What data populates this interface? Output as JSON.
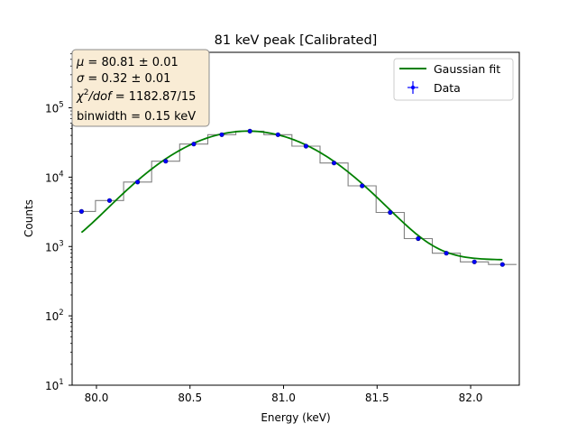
{
  "chart_data": {
    "type": "line",
    "title": "81 keV peak [Calibrated]",
    "xlabel": "Energy (keV)",
    "ylabel": "Counts",
    "xlim": [
      79.87,
      82.26
    ],
    "ylim_log10": [
      1,
      5.8
    ],
    "y_scale": "log",
    "grid": false,
    "x_ticks": [
      80.0,
      80.5,
      81.0,
      81.5,
      82.0
    ],
    "x_tick_labels": [
      "80.0",
      "80.5",
      "81.0",
      "81.5",
      "82.0"
    ],
    "y_ticks_exp": [
      1,
      2,
      3,
      4,
      5
    ],
    "legend_placement": "top-right",
    "colors": {
      "fit": "#008000",
      "data": "#0000ff",
      "hist": "#808080",
      "stats_box_fill": "#f9ecd5",
      "stats_box_border": "#8c8c8c"
    },
    "stats_box": {
      "line1": {
        "lhs": "μ",
        "rhs": " = 80.81 ± 0.01"
      },
      "line2": {
        "lhs": "σ",
        "rhs": " = 0.32 ± 0.01"
      },
      "line3": {
        "lhs": "χ",
        "sup": "2",
        "mid": "/dof",
        "rhs": " = 1182.87/15"
      },
      "line4": "binwidth = 0.15 keV"
    },
    "series": [
      {
        "name": "Gaussian fit",
        "kind": "line",
        "mu": 80.81,
        "sigma": 0.32,
        "amplitude": 45500,
        "offset": 640,
        "x_range": [
          79.92,
          82.17
        ]
      },
      {
        "name": "Data",
        "kind": "points",
        "x": [
          79.92,
          80.07,
          80.22,
          80.37,
          80.52,
          80.67,
          80.82,
          80.97,
          81.12,
          81.27,
          81.42,
          81.57,
          81.72,
          81.87,
          82.02,
          82.17
        ],
        "y": [
          3200,
          4600,
          8500,
          17000,
          30000,
          41000,
          46000,
          41000,
          28000,
          16000,
          7500,
          3100,
          1300,
          800,
          600,
          550
        ]
      }
    ],
    "histogram": {
      "bin_edges": [
        79.87,
        79.995,
        80.145,
        80.295,
        80.445,
        80.595,
        80.745,
        80.895,
        81.045,
        81.195,
        81.345,
        81.495,
        81.645,
        81.795,
        81.945,
        82.095,
        82.245
      ],
      "counts": [
        3200,
        4600,
        8500,
        17000,
        30000,
        41000,
        46000,
        41000,
        28000,
        16000,
        7500,
        3100,
        1300,
        800,
        600,
        550
      ]
    }
  }
}
